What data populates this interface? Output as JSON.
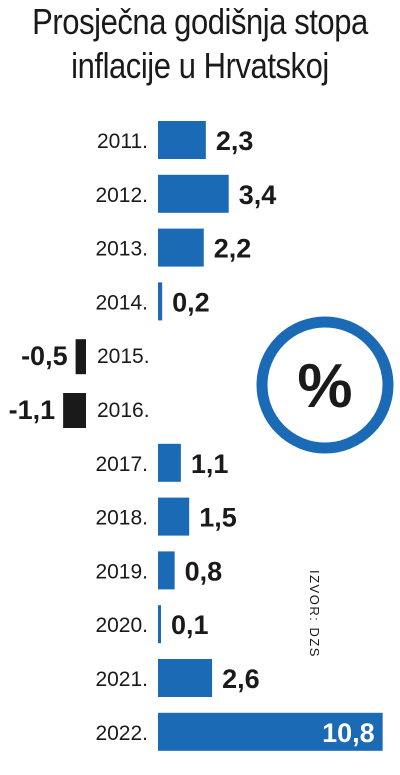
{
  "title_lines": [
    "Prosječna godišnja stopa",
    "inflacije u Hrvatskoj"
  ],
  "badge_symbol": "%",
  "source_text": "IZVOR: DZS",
  "colors": {
    "positive": "#1a6ab5",
    "negative": "#1a1a1a",
    "text": "#1a1a1a",
    "circle": "#1a6ab5"
  },
  "chart_data": {
    "type": "bar",
    "orientation": "horizontal",
    "title": "Prosječna godišnja stopa inflacije u Hrvatskoj",
    "categories": [
      "2011.",
      "2012.",
      "2013.",
      "2014.",
      "2015.",
      "2016.",
      "2017.",
      "2018.",
      "2019.",
      "2020.",
      "2021.",
      "2022."
    ],
    "values": [
      2.3,
      3.4,
      2.2,
      0.2,
      -0.5,
      -1.1,
      1.1,
      1.5,
      0.8,
      0.1,
      2.6,
      10.8
    ],
    "value_labels": [
      "2,3",
      "3,4",
      "2,2",
      "0,2",
      "-0,5",
      "-1,1",
      "1,1",
      "1,5",
      "0,8",
      "0,1",
      "2,6",
      "10,8"
    ],
    "source": "IZVOR: DZS"
  }
}
